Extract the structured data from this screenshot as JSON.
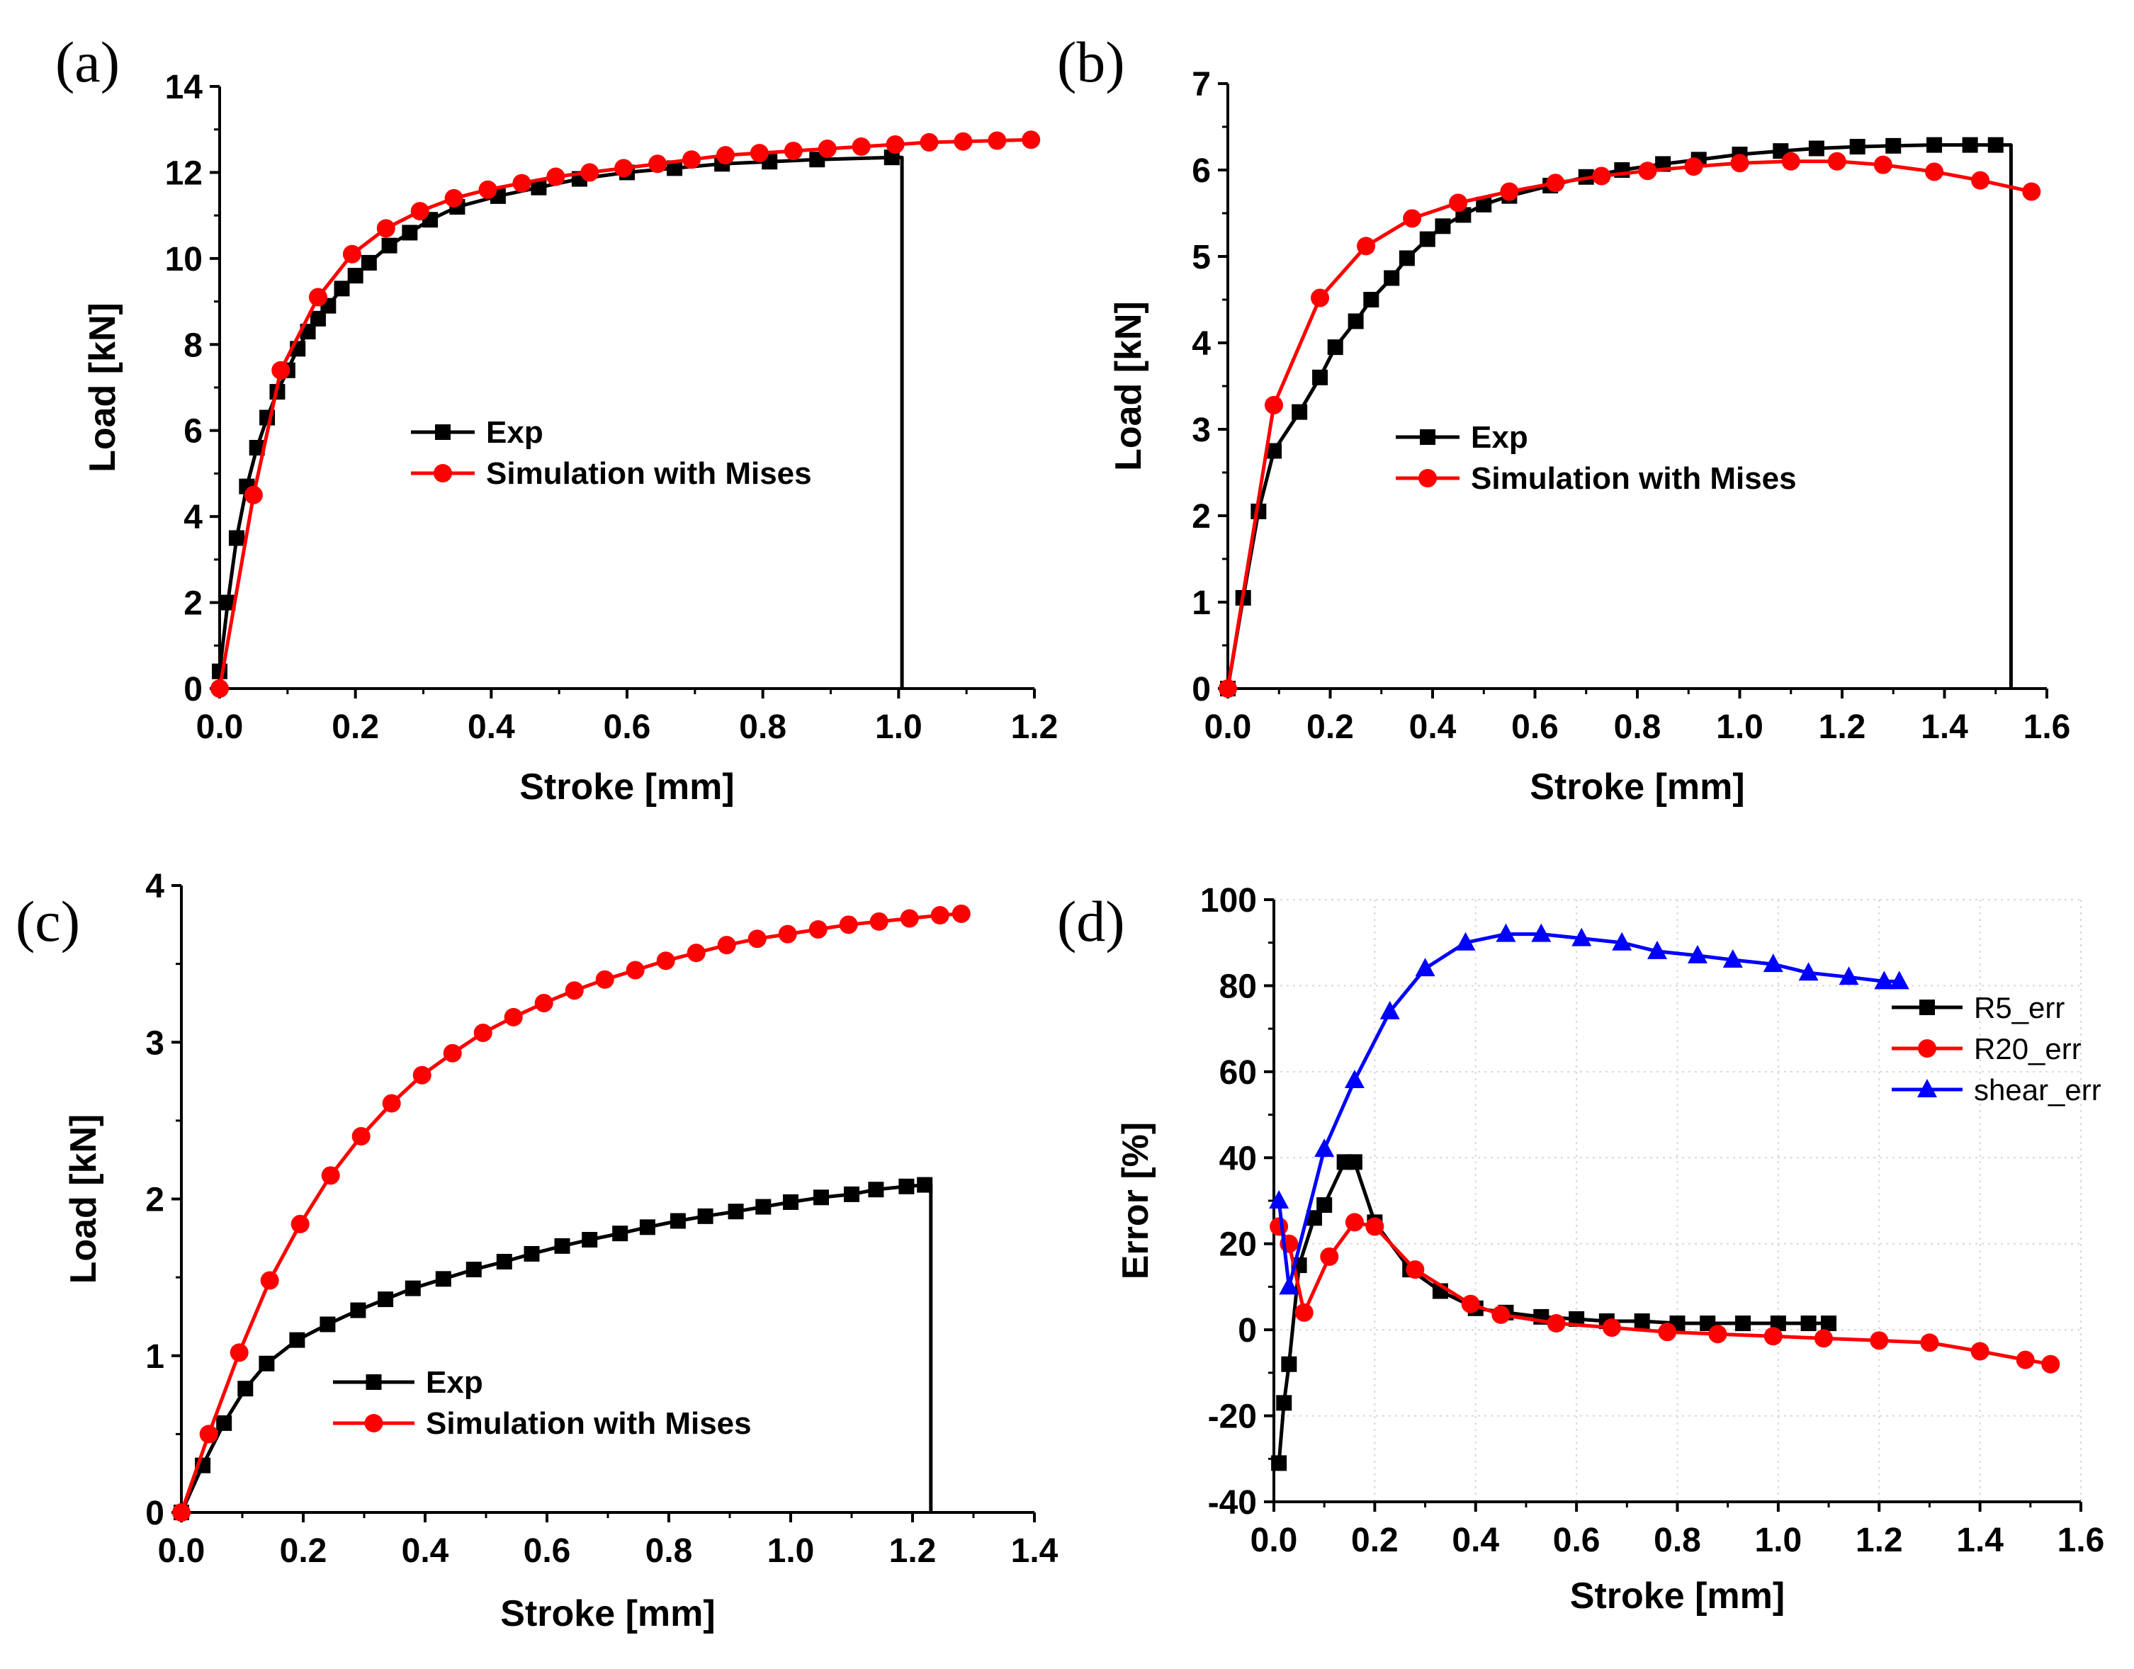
{
  "chart_data": [
    {
      "panel_label": "(a)",
      "type": "line",
      "xlabel": "Stroke [mm]",
      "ylabel": "Load [kN]",
      "xlim": [
        0,
        1.2
      ],
      "ylim": [
        0,
        14
      ],
      "xticks": [
        "0.0",
        "0.2",
        "0.4",
        "0.6",
        "0.8",
        "1.0",
        "1.2"
      ],
      "yticks": [
        "0",
        "2",
        "4",
        "6",
        "8",
        "10",
        "12",
        "14"
      ],
      "grid": false,
      "legend_position": "center",
      "series": [
        {
          "name": "Exp",
          "color": "#000000",
          "marker": "square",
          "drop_to_zero_at": 1.005,
          "x": [
            0.0,
            0.012,
            0.025,
            0.04,
            0.055,
            0.07,
            0.085,
            0.1,
            0.115,
            0.13,
            0.145,
            0.16,
            0.18,
            0.2,
            0.22,
            0.25,
            0.28,
            0.31,
            0.35,
            0.41,
            0.47,
            0.53,
            0.6,
            0.67,
            0.74,
            0.81,
            0.88,
            0.99
          ],
          "y": [
            0.4,
            2.0,
            3.5,
            4.7,
            5.6,
            6.3,
            6.9,
            7.4,
            7.9,
            8.3,
            8.6,
            8.9,
            9.3,
            9.6,
            9.9,
            10.3,
            10.6,
            10.9,
            11.2,
            11.45,
            11.65,
            11.85,
            12.0,
            12.1,
            12.2,
            12.25,
            12.3,
            12.35
          ]
        },
        {
          "name": "Simulation with Mises",
          "color": "#ff0000",
          "marker": "circle",
          "x": [
            0.0,
            0.05,
            0.09,
            0.145,
            0.195,
            0.245,
            0.295,
            0.345,
            0.395,
            0.445,
            0.495,
            0.545,
            0.595,
            0.645,
            0.695,
            0.745,
            0.795,
            0.845,
            0.895,
            0.945,
            0.995,
            1.045,
            1.095,
            1.145,
            1.195
          ],
          "y": [
            0.0,
            4.5,
            7.4,
            9.1,
            10.1,
            10.7,
            11.1,
            11.4,
            11.6,
            11.75,
            11.9,
            12.0,
            12.1,
            12.2,
            12.3,
            12.4,
            12.45,
            12.5,
            12.55,
            12.6,
            12.65,
            12.7,
            12.72,
            12.74,
            12.76
          ]
        }
      ]
    },
    {
      "panel_label": "(b)",
      "type": "line",
      "xlabel": "Stroke [mm]",
      "ylabel": "Load [kN]",
      "xlim": [
        0,
        1.6
      ],
      "ylim": [
        0,
        7
      ],
      "xticks": [
        "0.0",
        "0.2",
        "0.4",
        "0.6",
        "0.8",
        "1.0",
        "1.2",
        "1.4",
        "1.6"
      ],
      "yticks": [
        "0",
        "1",
        "2",
        "3",
        "4",
        "5",
        "6",
        "7"
      ],
      "grid": false,
      "legend_position": "center",
      "series": [
        {
          "name": "Exp",
          "color": "#000000",
          "marker": "square",
          "drop_to_zero_at": 1.53,
          "x": [
            0.0,
            0.03,
            0.06,
            0.09,
            0.14,
            0.18,
            0.21,
            0.25,
            0.28,
            0.32,
            0.35,
            0.39,
            0.42,
            0.46,
            0.5,
            0.55,
            0.63,
            0.7,
            0.77,
            0.85,
            0.92,
            1.0,
            1.08,
            1.15,
            1.23,
            1.3,
            1.38,
            1.45,
            1.5
          ],
          "y": [
            0.0,
            1.05,
            2.05,
            2.75,
            3.2,
            3.6,
            3.95,
            4.25,
            4.5,
            4.75,
            4.98,
            5.2,
            5.35,
            5.48,
            5.6,
            5.7,
            5.82,
            5.92,
            6.0,
            6.07,
            6.12,
            6.18,
            6.22,
            6.25,
            6.27,
            6.28,
            6.29,
            6.29,
            6.29
          ]
        },
        {
          "name": "Simulation with Mises",
          "color": "#ff0000",
          "marker": "circle",
          "x": [
            0.0,
            0.09,
            0.18,
            0.27,
            0.36,
            0.45,
            0.55,
            0.64,
            0.73,
            0.82,
            0.91,
            1.0,
            1.1,
            1.19,
            1.28,
            1.38,
            1.47,
            1.57
          ],
          "y": [
            0.0,
            3.28,
            4.52,
            5.12,
            5.44,
            5.62,
            5.75,
            5.85,
            5.93,
            5.99,
            6.04,
            6.08,
            6.1,
            6.1,
            6.06,
            5.98,
            5.88,
            5.75
          ]
        }
      ]
    },
    {
      "panel_label": "(c)",
      "type": "line",
      "xlabel": "Stroke [mm]",
      "ylabel": "Load [kN]",
      "xlim": [
        0,
        1.4
      ],
      "ylim": [
        0,
        4
      ],
      "xticks": [
        "0.0",
        "0.2",
        "0.4",
        "0.6",
        "0.8",
        "1.0",
        "1.2",
        "1.4"
      ],
      "yticks": [
        "0",
        "1",
        "2",
        "3",
        "4"
      ],
      "grid": false,
      "legend_position": "bottom-center",
      "series": [
        {
          "name": "Exp",
          "color": "#000000",
          "marker": "square",
          "drop_to_zero_at": 1.23,
          "x": [
            0.0,
            0.035,
            0.07,
            0.105,
            0.14,
            0.19,
            0.24,
            0.29,
            0.335,
            0.38,
            0.43,
            0.48,
            0.53,
            0.575,
            0.625,
            0.67,
            0.72,
            0.765,
            0.815,
            0.86,
            0.91,
            0.955,
            1.0,
            1.05,
            1.1,
            1.14,
            1.19,
            1.22
          ],
          "y": [
            0.0,
            0.3,
            0.57,
            0.79,
            0.95,
            1.1,
            1.2,
            1.29,
            1.36,
            1.43,
            1.49,
            1.55,
            1.6,
            1.65,
            1.7,
            1.74,
            1.78,
            1.82,
            1.86,
            1.89,
            1.92,
            1.95,
            1.98,
            2.01,
            2.03,
            2.06,
            2.08,
            2.09
          ]
        },
        {
          "name": "Simulation with Mises",
          "color": "#ff0000",
          "marker": "circle",
          "x": [
            0.0,
            0.045,
            0.095,
            0.145,
            0.195,
            0.245,
            0.295,
            0.345,
            0.395,
            0.445,
            0.495,
            0.545,
            0.595,
            0.645,
            0.695,
            0.745,
            0.795,
            0.845,
            0.895,
            0.945,
            0.995,
            1.045,
            1.095,
            1.145,
            1.195,
            1.245,
            1.28
          ],
          "y": [
            0.0,
            0.5,
            1.02,
            1.48,
            1.84,
            2.15,
            2.4,
            2.61,
            2.79,
            2.93,
            3.06,
            3.16,
            3.25,
            3.33,
            3.4,
            3.46,
            3.52,
            3.57,
            3.62,
            3.66,
            3.69,
            3.72,
            3.75,
            3.77,
            3.79,
            3.81,
            3.82
          ]
        }
      ]
    },
    {
      "panel_label": "(d)",
      "type": "line",
      "xlabel": "Stroke [mm]",
      "ylabel": "Error [%]",
      "xlim": [
        0,
        1.6
      ],
      "ylim": [
        -40,
        100
      ],
      "xticks": [
        "0.0",
        "0.2",
        "0.4",
        "0.6",
        "0.8",
        "1.0",
        "1.2",
        "1.4",
        "1.6"
      ],
      "yticks": [
        "-40",
        "-20",
        "0",
        "20",
        "40",
        "60",
        "80",
        "100"
      ],
      "grid": true,
      "legend_position": "right",
      "series": [
        {
          "name": "R5_err",
          "color": "#000000",
          "marker": "square",
          "x": [
            0.01,
            0.02,
            0.03,
            0.05,
            0.08,
            0.1,
            0.14,
            0.16,
            0.2,
            0.27,
            0.33,
            0.4,
            0.46,
            0.53,
            0.6,
            0.66,
            0.73,
            0.8,
            0.86,
            0.93,
            1.0,
            1.06,
            1.1
          ],
          "y": [
            -31.0,
            -17.0,
            -8.0,
            15.0,
            26.0,
            29.0,
            39.0,
            39.0,
            25.0,
            14.0,
            9.0,
            5.0,
            4.0,
            3.0,
            2.5,
            2.0,
            2.0,
            1.5,
            1.5,
            1.5,
            1.5,
            1.5,
            1.5
          ]
        },
        {
          "name": "R20_err",
          "color": "#ff0000",
          "marker": "circle",
          "x": [
            0.01,
            0.03,
            0.06,
            0.11,
            0.16,
            0.2,
            0.28,
            0.39,
            0.45,
            0.56,
            0.67,
            0.78,
            0.88,
            0.99,
            1.09,
            1.2,
            1.3,
            1.4,
            1.49,
            1.54
          ],
          "y": [
            24.0,
            20.0,
            4.0,
            17.0,
            25.0,
            24.0,
            14.0,
            6.0,
            3.5,
            1.5,
            0.5,
            -0.5,
            -1.0,
            -1.5,
            -2.0,
            -2.5,
            -3.0,
            -5.0,
            -7.0,
            -8.0
          ]
        },
        {
          "name": "shear_err",
          "color": "#0000ff",
          "marker": "triangle",
          "x": [
            0.01,
            0.03,
            0.1,
            0.16,
            0.23,
            0.3,
            0.38,
            0.46,
            0.53,
            0.61,
            0.69,
            0.76,
            0.84,
            0.91,
            0.99,
            1.06,
            1.14,
            1.21,
            1.24
          ],
          "y": [
            30.0,
            10.0,
            42.0,
            58.0,
            74.0,
            84.0,
            90.0,
            92.0,
            92.0,
            91.0,
            90.0,
            88.0,
            87.0,
            86.0,
            85.0,
            83.0,
            82.0,
            81.0,
            81.0
          ]
        }
      ]
    }
  ]
}
